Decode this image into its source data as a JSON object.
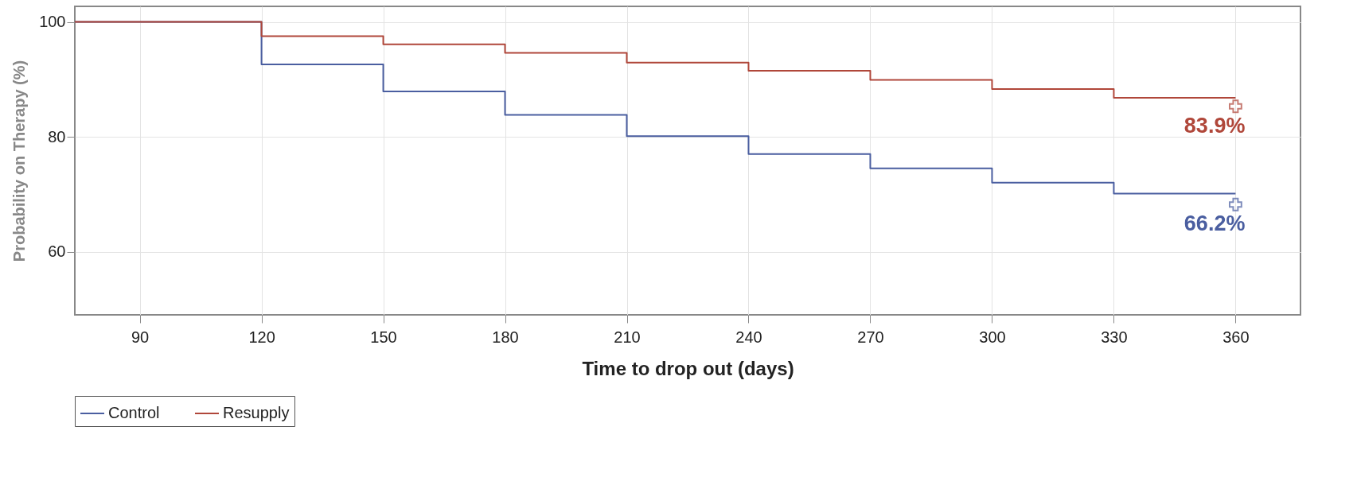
{
  "chart_data": {
    "type": "step",
    "xlabel": "Time to drop out (days)",
    "ylabel": "Probability on Therapy (%)",
    "xlim": [
      74,
      376
    ],
    "ylim": [
      49,
      102.7
    ],
    "xticks": [
      90,
      120,
      150,
      180,
      210,
      240,
      270,
      300,
      330,
      360
    ],
    "yticks": [
      60,
      80,
      100
    ],
    "grid": true,
    "legend": "bottom",
    "marker": "none",
    "line_style": "solid",
    "series": [
      {
        "name": "Control",
        "color": "#4a5ea0",
        "x": [
          74,
          120,
          150,
          180,
          210,
          240,
          270,
          300,
          330,
          360
        ],
        "values": [
          100,
          92.6,
          87.9,
          83.8,
          80.1,
          77.0,
          74.5,
          72.0,
          70.1,
          70.1
        ]
      },
      {
        "name": "Resupply",
        "color": "#b0473a",
        "x": [
          74,
          120,
          150,
          180,
          210,
          240,
          270,
          300,
          330,
          360
        ],
        "values": [
          100,
          97.5,
          96.1,
          94.6,
          92.9,
          91.5,
          89.9,
          88.3,
          86.8,
          86.8
        ]
      },
      {
        "type": "scatter",
        "marker": "cross",
        "color": "#4a5ea0",
        "x": [
          360
        ],
        "values": [
          68.2
        ]
      },
      {
        "type": "scatter",
        "marker": "cross",
        "color": "#b0473a",
        "x": [
          360
        ],
        "values": [
          85.3
        ]
      }
    ],
    "annotations": [
      {
        "text": "66.2%",
        "x": 360,
        "y": 68.2
      },
      {
        "text": "83.9%",
        "x": 360,
        "y": 85.3
      }
    ]
  }
}
